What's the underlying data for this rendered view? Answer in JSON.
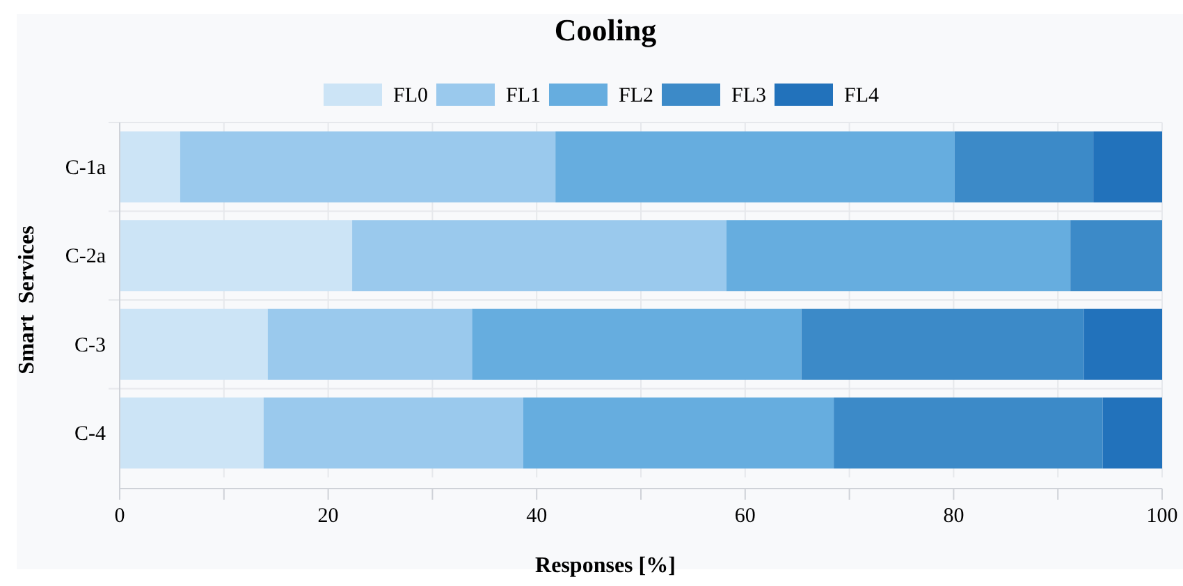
{
  "chart_data": {
    "type": "bar",
    "orientation": "horizontal",
    "stacked": true,
    "title": "Cooling",
    "xlabel": "Responses [%]",
    "ylabel": "Smart  Services",
    "categories": [
      "C-1a",
      "C-2a",
      "C-3",
      "C-4"
    ],
    "series": [
      {
        "name": "FL0",
        "color": "#cce4f6",
        "values": [
          5.8,
          22.3,
          14.2,
          13.8
        ]
      },
      {
        "name": "FL1",
        "color": "#9ac9ed",
        "values": [
          36,
          35.9,
          19.6,
          24.9
        ]
      },
      {
        "name": "FL2",
        "color": "#66addf",
        "values": [
          38.3,
          33,
          31.6,
          29.8
        ]
      },
      {
        "name": "FL3",
        "color": "#3c8ac8",
        "values": [
          13.3,
          8.8,
          27.1,
          25.8
        ]
      },
      {
        "name": "FL4",
        "color": "#2272bb",
        "values": [
          6.6,
          0,
          7.5,
          5.7
        ]
      }
    ],
    "xlim": [
      0,
      100
    ],
    "xticks": [
      0,
      {
        "value": 10,
        "label": null
      },
      20,
      {
        "value": 30,
        "label": null
      },
      40,
      {
        "value": 50,
        "label": null
      },
      60,
      {
        "value": 70,
        "label": null
      },
      80,
      {
        "value": 90,
        "label": null
      },
      100
    ],
    "grid": true,
    "legend": "top"
  }
}
